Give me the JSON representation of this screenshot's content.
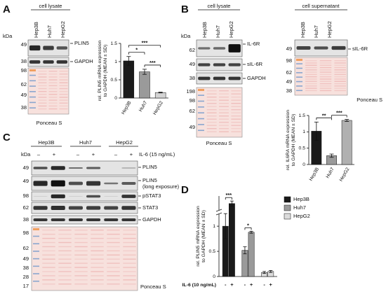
{
  "panel_labels": [
    "A",
    "B",
    "C",
    "D"
  ],
  "panel_a": {
    "header": "cell lysate",
    "lanes": [
      "Hep3B",
      "Huh7",
      "HepG2"
    ],
    "kda": "kDa",
    "markers": [
      "49",
      "38",
      "98",
      "62",
      "49",
      "38"
    ],
    "proteins": [
      "PLIN5",
      "GAPDH"
    ],
    "ponceau": "Ponceau S"
  },
  "panel_b": {
    "lysate": {
      "header": "cell lysate",
      "lanes": [
        "Hep3B",
        "Huh7",
        "HepG2"
      ],
      "kda": "kDa",
      "markers": [
        "62",
        "49",
        "38",
        "198",
        "98",
        "62",
        "49"
      ],
      "proteins": [
        "IL-6R",
        "sIL-6R",
        "GAPDH"
      ],
      "ponceau": "Ponceau S"
    },
    "supernatant": {
      "header": "cell supernatant",
      "lanes": [
        "Hep3B",
        "Huh7",
        "HepG2"
      ],
      "markers": [
        "49",
        "98",
        "62",
        "49",
        "38"
      ],
      "proteins": [
        "sIL-6R"
      ],
      "ponceau": "Ponceau S"
    }
  },
  "panel_c": {
    "groups": [
      "Hep3B",
      "Huh7",
      "HepG2"
    ],
    "kda": "kDa",
    "treatment": [
      "–",
      "+",
      "–",
      "+",
      "–",
      "+"
    ],
    "treatment_label": "IL-6 (15 ng/mL)",
    "markers": [
      "49",
      "49",
      "98",
      "62",
      "38",
      "98",
      "62",
      "49",
      "38",
      "28",
      "17"
    ],
    "proteins": [
      "PLIN5",
      "PLIN5",
      "(long exposure)",
      "pSTAT3",
      "STAT3",
      "GAPDH"
    ],
    "ponceau": "Ponceau S"
  },
  "chart_data": [
    {
      "type": "bar",
      "ylabel": [
        "rel. PLIN5 mRNA expression",
        "to GAPDH (MEAN ± SD)"
      ],
      "categories": [
        "Hep3B",
        "Huh7",
        "HepG2"
      ],
      "values": [
        1.02,
        0.72,
        0.15
      ],
      "errors": [
        0.12,
        0.07,
        0.01
      ],
      "colors": [
        "#1a1a1a",
        "#9a9a9a",
        "#d4d4d4"
      ],
      "ylim": [
        0,
        1.5
      ],
      "yticks": [
        0,
        0.5,
        1,
        1.5
      ],
      "significance": [
        {
          "text": "***",
          "between": [
            "Hep3B",
            "HepG2"
          ]
        },
        {
          "text": "*",
          "between": [
            "Hep3B",
            "Huh7"
          ]
        },
        {
          "text": "***",
          "between": [
            "Huh7",
            "HepG2"
          ]
        }
      ]
    },
    {
      "type": "bar",
      "ylabel": [
        "rel. IL6RA mRNA expression",
        "to GAPDH (MEAN ± SD)"
      ],
      "categories": [
        "Hep3B",
        "Huh7",
        "HepG2"
      ],
      "values": [
        1.02,
        0.27,
        1.35
      ],
      "errors": [
        0.28,
        0.05,
        0.03
      ],
      "colors": [
        "#1a1a1a",
        "#9a9a9a",
        "#b0b0b0"
      ],
      "ylim": [
        0,
        1.5
      ],
      "yticks": [
        0,
        0.5,
        1,
        1.5
      ],
      "significance": [
        {
          "text": "**",
          "between": [
            "Hep3B",
            "Huh7"
          ]
        },
        {
          "text": "***",
          "between": [
            "Huh7",
            "HepG2"
          ]
        }
      ]
    },
    {
      "type": "grouped_bar",
      "ylabel": [
        "rel. PLIN5 mRNA expression",
        "to GAPDH (MEAN ± SD)"
      ],
      "categories": [
        "-",
        "+"
      ],
      "xlabel": "IL-6 (10 ng/mL)",
      "series": [
        {
          "name": "Hep3B",
          "color": "#1a1a1a",
          "values": [
            1.0,
            1.45
          ],
          "errors": [
            0.25,
            0.05
          ]
        },
        {
          "name": "Huh7",
          "color": "#9a9a9a",
          "values": [
            0.52,
            0.88
          ],
          "errors": [
            0.07,
            0.02
          ]
        },
        {
          "name": "HepG2",
          "color": "#dcdcdc",
          "values": [
            0.08,
            0.1
          ],
          "errors": [
            0.02,
            0.02
          ]
        }
      ],
      "ylim": [
        0,
        1.6
      ],
      "yticks": [
        0,
        0.5,
        1
      ],
      "legend": "upper right",
      "significance": [
        {
          "text": "***",
          "series": "Hep3B"
        },
        {
          "text": "*",
          "series": "Huh7"
        }
      ]
    }
  ]
}
